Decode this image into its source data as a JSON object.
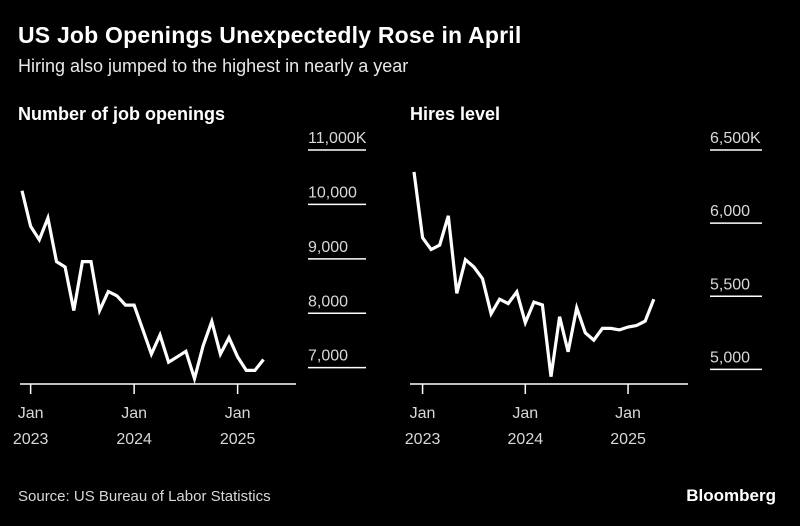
{
  "header": {
    "title": "US Job Openings Unexpectedly Rose in April",
    "subtitle": "Hiring also jumped to the highest in nearly a year"
  },
  "footer": {
    "source": "Source: US Bureau of Labor Statistics",
    "brand": "Bloomberg"
  },
  "colors": {
    "background": "#000000",
    "line": "#ffffff",
    "text": "#ffffff"
  },
  "chart_data": [
    {
      "type": "line",
      "title": "Number of job openings",
      "y_ticks": [
        {
          "value": 11000,
          "label": "11,000K"
        },
        {
          "value": 10000,
          "label": "10,000"
        },
        {
          "value": 9000,
          "label": "9,000"
        },
        {
          "value": 8000,
          "label": "8,000"
        },
        {
          "value": 7000,
          "label": "7,000"
        }
      ],
      "x_ticks": [
        {
          "month": "2023-01",
          "line1": "Jan",
          "line2": "2023"
        },
        {
          "month": "2024-01",
          "line1": "Jan",
          "line2": "2024"
        },
        {
          "month": "2025-01",
          "line1": "Jan",
          "line2": "2025"
        }
      ],
      "ylim": [
        6700,
        11000
      ],
      "xlim": [
        "2022-12",
        "2025-08"
      ],
      "grid": false,
      "series": [
        {
          "x": [
            "2022-12",
            "2023-01",
            "2023-02",
            "2023-03",
            "2023-04",
            "2023-05",
            "2023-06",
            "2023-07",
            "2023-08",
            "2023-09",
            "2023-10",
            "2023-11",
            "2023-12",
            "2024-01",
            "2024-02",
            "2024-03",
            "2024-04",
            "2024-05",
            "2024-06",
            "2024-07",
            "2024-08",
            "2024-09",
            "2024-10",
            "2024-11",
            "2024-12",
            "2025-01",
            "2025-02",
            "2025-03",
            "2025-04"
          ],
          "y": [
            10250,
            9600,
            9350,
            9750,
            8950,
            8850,
            8050,
            8950,
            8950,
            8050,
            8400,
            8320,
            8150,
            8150,
            7700,
            7250,
            7600,
            7100,
            7200,
            7300,
            6800,
            7400,
            7850,
            7250,
            7550,
            7200,
            6950,
            6950,
            7150
          ]
        }
      ]
    },
    {
      "type": "line",
      "title": "Hires level",
      "y_ticks": [
        {
          "value": 6500,
          "label": "6,500K"
        },
        {
          "value": 6000,
          "label": "6,000"
        },
        {
          "value": 5500,
          "label": "5,500"
        },
        {
          "value": 5000,
          "label": "5,000"
        }
      ],
      "x_ticks": [
        {
          "month": "2023-01",
          "line1": "Jan",
          "line2": "2023"
        },
        {
          "month": "2024-01",
          "line1": "Jan",
          "line2": "2024"
        },
        {
          "month": "2025-01",
          "line1": "Jan",
          "line2": "2025"
        }
      ],
      "ylim": [
        4900,
        6500
      ],
      "xlim": [
        "2022-12",
        "2025-08"
      ],
      "grid": false,
      "series": [
        {
          "x": [
            "2022-12",
            "2023-01",
            "2023-02",
            "2023-03",
            "2023-04",
            "2023-05",
            "2023-06",
            "2023-07",
            "2023-08",
            "2023-09",
            "2023-10",
            "2023-11",
            "2023-12",
            "2024-01",
            "2024-02",
            "2024-03",
            "2024-04",
            "2024-05",
            "2024-06",
            "2024-07",
            "2024-08",
            "2024-09",
            "2024-10",
            "2024-11",
            "2024-12",
            "2025-01",
            "2025-02",
            "2025-03",
            "2025-04"
          ],
          "y": [
            6350,
            5900,
            5820,
            5850,
            6050,
            5520,
            5750,
            5700,
            5620,
            5380,
            5480,
            5450,
            5530,
            5320,
            5460,
            5440,
            4950,
            5360,
            5120,
            5420,
            5250,
            5200,
            5280,
            5280,
            5270,
            5290,
            5300,
            5330,
            5480
          ]
        }
      ]
    }
  ]
}
